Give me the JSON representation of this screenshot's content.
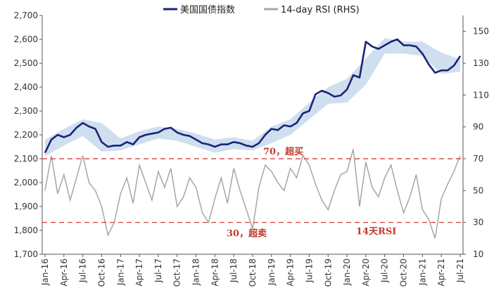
{
  "chart_data": {
    "type": "line",
    "title": "",
    "x_ticks": [
      "Jan-16",
      "Apr-16",
      "Jul-16",
      "Oct-16",
      "Jan-17",
      "Apr-17",
      "Jul-17",
      "Oct-17",
      "Jan-18",
      "Apr-18",
      "Jul-18",
      "Oct-18",
      "Jan-19",
      "Apr-19",
      "Jul-19",
      "Oct-19",
      "Jan-20",
      "Apr-20",
      "Jul-20",
      "Oct-20",
      "Jan-21",
      "Apr-21",
      "Jul-21"
    ],
    "y_left": {
      "ylim": [
        1700,
        2700
      ],
      "ticks": [
        "1,700",
        "1,800",
        "1,900",
        "2,000",
        "2,100",
        "2,200",
        "2,300",
        "2,400",
        "2,500",
        "2,600",
        "2,700"
      ]
    },
    "y_right": {
      "ylim": [
        10,
        160
      ],
      "ticks": [
        "10",
        "30",
        "50",
        "70",
        "90",
        "110",
        "130",
        "150"
      ]
    },
    "colors": {
      "index": "#1b237a",
      "rsi": "#a6a6a6",
      "band": "#c8d9ec",
      "ref_line": "#d62828",
      "anno": "#c0392b"
    },
    "series": [
      {
        "name": "美国国债指数",
        "axis": "left",
        "x": [
          "2016-01",
          "2016-02",
          "2016-03",
          "2016-04",
          "2016-05",
          "2016-06",
          "2016-07",
          "2016-08",
          "2016-09",
          "2016-10",
          "2016-11",
          "2016-12",
          "2017-01",
          "2017-02",
          "2017-03",
          "2017-04",
          "2017-05",
          "2017-06",
          "2017-07",
          "2017-08",
          "2017-09",
          "2017-10",
          "2017-11",
          "2017-12",
          "2018-01",
          "2018-02",
          "2018-03",
          "2018-04",
          "2018-05",
          "2018-06",
          "2018-07",
          "2018-08",
          "2018-09",
          "2018-10",
          "2018-11",
          "2018-12",
          "2019-01",
          "2019-02",
          "2019-03",
          "2019-04",
          "2019-05",
          "2019-06",
          "2019-07",
          "2019-08",
          "2019-09",
          "2019-10",
          "2019-11",
          "2019-12",
          "2020-01",
          "2020-02",
          "2020-03",
          "2020-04",
          "2020-05",
          "2020-06",
          "2020-07",
          "2020-08",
          "2020-09",
          "2020-10",
          "2020-11",
          "2020-12",
          "2021-01",
          "2021-02",
          "2021-03",
          "2021-04",
          "2021-05",
          "2021-06",
          "2021-07"
        ],
        "values": [
          2125,
          2180,
          2200,
          2190,
          2200,
          2230,
          2250,
          2235,
          2225,
          2170,
          2150,
          2155,
          2155,
          2170,
          2160,
          2190,
          2200,
          2205,
          2210,
          2225,
          2230,
          2210,
          2200,
          2195,
          2180,
          2165,
          2160,
          2150,
          2160,
          2160,
          2170,
          2165,
          2155,
          2150,
          2165,
          2200,
          2225,
          2220,
          2240,
          2235,
          2250,
          2290,
          2300,
          2370,
          2385,
          2375,
          2360,
          2365,
          2390,
          2450,
          2440,
          2590,
          2570,
          2560,
          2575,
          2590,
          2600,
          2575,
          2575,
          2570,
          2540,
          2495,
          2460,
          2470,
          2470,
          2490,
          2530
        ]
      },
      {
        "name": "14-day RSI (RHS)",
        "axis": "right",
        "x": [
          "2016-01",
          "2016-02",
          "2016-03",
          "2016-04",
          "2016-05",
          "2016-06",
          "2016-07",
          "2016-08",
          "2016-09",
          "2016-10",
          "2016-11",
          "2016-12",
          "2017-01",
          "2017-02",
          "2017-03",
          "2017-04",
          "2017-05",
          "2017-06",
          "2017-07",
          "2017-08",
          "2017-09",
          "2017-10",
          "2017-11",
          "2017-12",
          "2018-01",
          "2018-02",
          "2018-03",
          "2018-04",
          "2018-05",
          "2018-06",
          "2018-07",
          "2018-08",
          "2018-09",
          "2018-10",
          "2018-11",
          "2018-12",
          "2019-01",
          "2019-02",
          "2019-03",
          "2019-04",
          "2019-05",
          "2019-06",
          "2019-07",
          "2019-08",
          "2019-09",
          "2019-10",
          "2019-11",
          "2019-12",
          "2020-01",
          "2020-02",
          "2020-03",
          "2020-04",
          "2020-05",
          "2020-06",
          "2020-07",
          "2020-08",
          "2020-09",
          "2020-10",
          "2020-11",
          "2020-12",
          "2021-01",
          "2021-02",
          "2021-03",
          "2021-04",
          "2021-05",
          "2021-06",
          "2021-07"
        ],
        "values": [
          50,
          72,
          48,
          60,
          44,
          58,
          72,
          55,
          50,
          40,
          22,
          30,
          48,
          58,
          42,
          66,
          55,
          44,
          62,
          52,
          64,
          40,
          46,
          58,
          52,
          36,
          30,
          45,
          58,
          42,
          64,
          50,
          38,
          26,
          52,
          66,
          62,
          55,
          50,
          64,
          58,
          72,
          66,
          54,
          44,
          38,
          50,
          60,
          62,
          76,
          40,
          68,
          52,
          46,
          58,
          66,
          50,
          36,
          46,
          60,
          38,
          32,
          20,
          45,
          54,
          62,
          72
        ]
      }
    ],
    "band": {
      "x": [
        "2016-01",
        "2016-04",
        "2016-07",
        "2016-10",
        "2017-01",
        "2017-04",
        "2017-07",
        "2017-10",
        "2018-01",
        "2018-04",
        "2018-07",
        "2018-10",
        "2019-01",
        "2019-04",
        "2019-07",
        "2019-10",
        "2020-01",
        "2020-04",
        "2020-07",
        "2020-10",
        "2021-01",
        "2021-04",
        "2021-07"
      ],
      "upper": [
        2180,
        2225,
        2265,
        2250,
        2185,
        2215,
        2235,
        2225,
        2205,
        2180,
        2190,
        2175,
        2235,
        2265,
        2335,
        2400,
        2435,
        2520,
        2605,
        2590,
        2590,
        2545,
        2515
      ],
      "lower": [
        2110,
        2155,
        2195,
        2130,
        2135,
        2160,
        2185,
        2175,
        2150,
        2125,
        2140,
        2135,
        2165,
        2200,
        2265,
        2330,
        2335,
        2410,
        2540,
        2540,
        2530,
        2455,
        2465
      ]
    },
    "reference_lines": [
      {
        "axis": "right",
        "value": 70,
        "label": "70，超买"
      },
      {
        "axis": "right",
        "value": 30,
        "label": "30，超卖"
      }
    ],
    "annotations": [
      "14天RSI"
    ],
    "legend": {
      "placement": "top-center"
    }
  }
}
